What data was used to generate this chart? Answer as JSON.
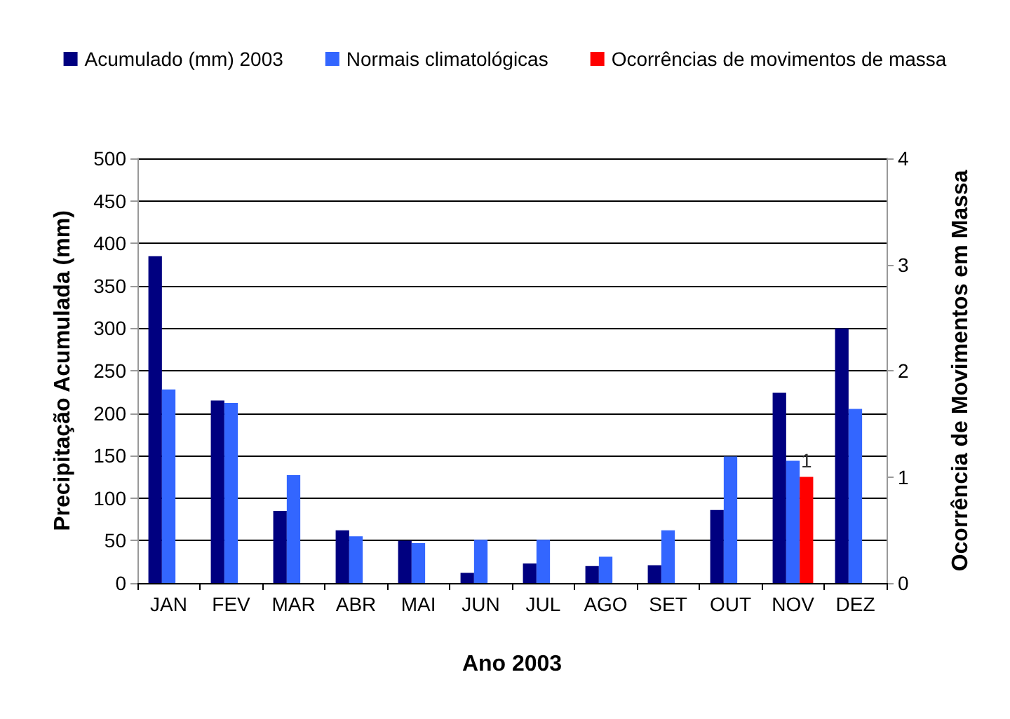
{
  "chart_data": {
    "type": "bar",
    "xlabel": "Ano 2003",
    "ylabel": "Precipitação Acumulada (mm)",
    "y2label": "Ocorrência de Movimentos em Massa",
    "categories": [
      "JAN",
      "FEV",
      "MAR",
      "ABR",
      "MAI",
      "JUN",
      "JUL",
      "AGO",
      "SET",
      "OUT",
      "NOV",
      "DEZ"
    ],
    "series": [
      {
        "name": "Acumulado (mm) 2003",
        "color": "#000080",
        "values": [
          385,
          215,
          85,
          62,
          50,
          12,
          23,
          20,
          21,
          86,
          224,
          300
        ]
      },
      {
        "name": "Normais climatológicas",
        "color": "#3366ff",
        "values": [
          228,
          212,
          127,
          55,
          47,
          51,
          51,
          31,
          62,
          149,
          144,
          205
        ]
      },
      {
        "name": "Ocorrências de movimentos de massa",
        "color": "#ff0000",
        "axis": "y2",
        "values": [
          null,
          null,
          null,
          null,
          null,
          null,
          null,
          null,
          null,
          null,
          1,
          null
        ],
        "value_labels": [
          null,
          null,
          null,
          null,
          null,
          null,
          null,
          null,
          null,
          null,
          "1",
          null
        ]
      }
    ],
    "ylim": [
      0,
      500
    ],
    "yticks": [
      0,
      50,
      100,
      150,
      200,
      250,
      300,
      350,
      400,
      450,
      500
    ],
    "y2lim": [
      0,
      4
    ],
    "y2ticks": [
      0,
      1,
      2,
      3,
      4
    ],
    "grid": "y",
    "legend": "top"
  }
}
